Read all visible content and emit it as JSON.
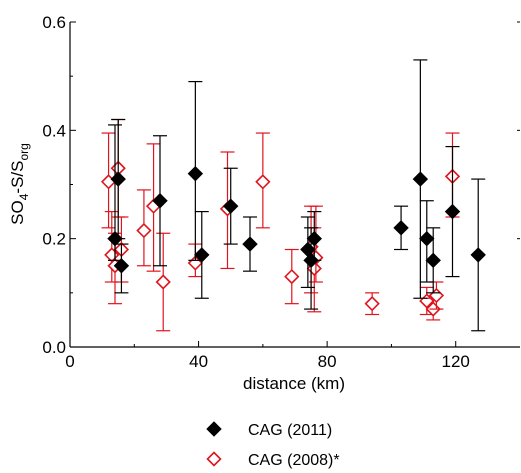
{
  "chart_data": {
    "type": "scatter",
    "title": "",
    "xlabel": "distance (km)",
    "ylabel_parts": [
      "SO",
      "4",
      "-S/S",
      "org"
    ],
    "xlim": [
      0,
      140
    ],
    "ylim": [
      0,
      0.6
    ],
    "xticks": [
      0,
      40,
      80,
      120
    ],
    "yticks": [
      0.0,
      0.2,
      0.4,
      0.6
    ],
    "xtick_labels": [
      "0",
      "40",
      "80",
      "120"
    ],
    "ytick_labels": [
      "0.0",
      "0.2",
      "0.4",
      "0.6"
    ],
    "grid": false,
    "legend_position": "bottom",
    "series": [
      {
        "name": "CAG (2011)",
        "marker": "filled-diamond",
        "color": "#000000",
        "points": [
          {
            "x": 14,
            "y": 0.2,
            "lo": 0.16,
            "hi": 0.41
          },
          {
            "x": 15,
            "y": 0.31,
            "lo": 0.2,
            "hi": 0.42
          },
          {
            "x": 16,
            "y": 0.15,
            "lo": 0.1,
            "hi": 0.19
          },
          {
            "x": 28,
            "y": 0.27,
            "lo": 0.15,
            "hi": 0.39
          },
          {
            "x": 39,
            "y": 0.32,
            "lo": 0.16,
            "hi": 0.49
          },
          {
            "x": 41,
            "y": 0.17,
            "lo": 0.09,
            "hi": 0.25
          },
          {
            "x": 50,
            "y": 0.26,
            "lo": 0.19,
            "hi": 0.33
          },
          {
            "x": 56,
            "y": 0.19,
            "lo": 0.14,
            "hi": 0.24
          },
          {
            "x": 74,
            "y": 0.18,
            "lo": 0.11,
            "hi": 0.24
          },
          {
            "x": 75,
            "y": 0.16,
            "lo": 0.07,
            "hi": 0.22
          },
          {
            "x": 76,
            "y": 0.2,
            "lo": 0.16,
            "hi": 0.25
          },
          {
            "x": 103,
            "y": 0.22,
            "lo": 0.18,
            "hi": 0.26
          },
          {
            "x": 109,
            "y": 0.31,
            "lo": 0.09,
            "hi": 0.53
          },
          {
            "x": 111,
            "y": 0.2,
            "lo": 0.12,
            "hi": 0.27
          },
          {
            "x": 113,
            "y": 0.16,
            "lo": 0.1,
            "hi": 0.22
          },
          {
            "x": 119,
            "y": 0.25,
            "lo": 0.13,
            "hi": 0.37
          },
          {
            "x": 127,
            "y": 0.17,
            "lo": 0.03,
            "hi": 0.31
          }
        ]
      },
      {
        "name": "CAG (2008)*",
        "marker": "open-diamond",
        "color": "#e0141e",
        "points": [
          {
            "x": 12,
            "y": 0.305,
            "lo": 0.22,
            "hi": 0.395
          },
          {
            "x": 13,
            "y": 0.17,
            "lo": 0.12,
            "hi": 0.25
          },
          {
            "x": 14,
            "y": 0.15,
            "lo": 0.08,
            "hi": 0.21
          },
          {
            "x": 15,
            "y": 0.33,
            "lo": 0.24,
            "hi": 0.42
          },
          {
            "x": 16,
            "y": 0.18,
            "lo": 0.12,
            "hi": 0.24
          },
          {
            "x": 23,
            "y": 0.215,
            "lo": 0.15,
            "hi": 0.29
          },
          {
            "x": 26,
            "y": 0.26,
            "lo": 0.14,
            "hi": 0.375
          },
          {
            "x": 29,
            "y": 0.12,
            "lo": 0.03,
            "hi": 0.21
          },
          {
            "x": 39,
            "y": 0.155,
            "lo": 0.13,
            "hi": 0.19
          },
          {
            "x": 49,
            "y": 0.255,
            "lo": 0.145,
            "hi": 0.36
          },
          {
            "x": 60,
            "y": 0.305,
            "lo": 0.22,
            "hi": 0.395
          },
          {
            "x": 69,
            "y": 0.13,
            "lo": 0.08,
            "hi": 0.18
          },
          {
            "x": 75,
            "y": 0.185,
            "lo": 0.1,
            "hi": 0.26
          },
          {
            "x": 76,
            "y": 0.145,
            "lo": 0.065,
            "hi": 0.22
          },
          {
            "x": 76.5,
            "y": 0.165,
            "lo": 0.12,
            "hi": 0.26
          },
          {
            "x": 94,
            "y": 0.08,
            "lo": 0.06,
            "hi": 0.1
          },
          {
            "x": 111,
            "y": 0.085,
            "lo": 0.06,
            "hi": 0.11
          },
          {
            "x": 113,
            "y": 0.07,
            "lo": 0.05,
            "hi": 0.09
          },
          {
            "x": 114,
            "y": 0.095,
            "lo": 0.07,
            "hi": 0.12
          },
          {
            "x": 119,
            "y": 0.315,
            "lo": 0.24,
            "hi": 0.395
          }
        ]
      }
    ]
  }
}
